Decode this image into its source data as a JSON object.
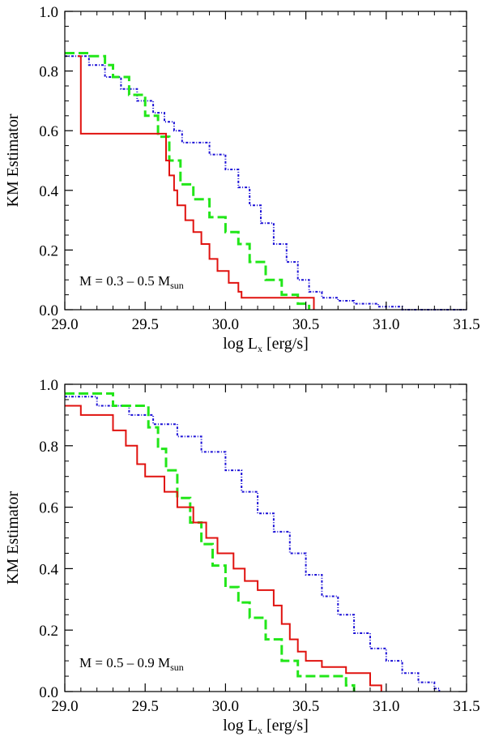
{
  "chart_data": [
    {
      "type": "line",
      "panel": "top",
      "xlabel": {
        "main": "log L",
        "sub": "x",
        "unit": " [erg/s]"
      },
      "ylabel": "KM Estimator",
      "xlim": [
        29.0,
        31.5
      ],
      "ylim": [
        0.0,
        1.0
      ],
      "xticks": [
        "29.0",
        "29.5",
        "30.0",
        "30.5",
        "31.0",
        "31.5"
      ],
      "yticks": [
        "0.0",
        "0.2",
        "0.4",
        "0.6",
        "0.8",
        "1.0"
      ],
      "annotation": {
        "prefix": "M = 0.3 – 0.5 M",
        "sub": "sun"
      },
      "series": [
        {
          "name": "blue dotted",
          "color": "#1a0fd6",
          "style": "dash-dot",
          "x": [
            29.0,
            29.15,
            29.25,
            29.35,
            29.45,
            29.55,
            29.62,
            29.68,
            29.73,
            29.9,
            30.0,
            30.08,
            30.15,
            30.22,
            30.3,
            30.38,
            30.45,
            30.52,
            30.6,
            30.7,
            30.8,
            30.95,
            31.1,
            31.3,
            31.5
          ],
          "y": [
            0.85,
            0.82,
            0.78,
            0.74,
            0.7,
            0.66,
            0.63,
            0.6,
            0.56,
            0.52,
            0.47,
            0.41,
            0.35,
            0.29,
            0.22,
            0.16,
            0.1,
            0.06,
            0.04,
            0.03,
            0.02,
            0.01,
            0.0,
            0.0,
            0.0
          ]
        },
        {
          "name": "green dashed",
          "color": "#22e619",
          "style": "dashed",
          "x": [
            29.0,
            29.15,
            29.25,
            29.3,
            29.4,
            29.5,
            29.58,
            29.65,
            29.72,
            29.8,
            29.9,
            30.0,
            30.08,
            30.15,
            30.25,
            30.35,
            30.45,
            30.52
          ],
          "y": [
            0.86,
            0.85,
            0.82,
            0.78,
            0.72,
            0.65,
            0.58,
            0.5,
            0.42,
            0.37,
            0.31,
            0.26,
            0.22,
            0.16,
            0.1,
            0.05,
            0.02,
            0.0
          ]
        },
        {
          "name": "red solid",
          "color": "#e0120f",
          "style": "solid",
          "x": [
            29.08,
            29.1,
            29.3,
            29.55,
            29.63,
            29.65,
            29.68,
            29.7,
            29.75,
            29.8,
            29.85,
            29.9,
            29.95,
            30.02,
            30.08,
            30.1,
            30.3,
            30.5,
            30.55
          ],
          "y": [
            0.85,
            0.59,
            0.59,
            0.59,
            0.5,
            0.45,
            0.4,
            0.35,
            0.3,
            0.26,
            0.22,
            0.17,
            0.13,
            0.09,
            0.06,
            0.04,
            0.04,
            0.04,
            0.0
          ]
        }
      ]
    },
    {
      "type": "line",
      "panel": "bottom",
      "xlabel": {
        "main": "log L",
        "sub": "x",
        "unit": " [erg/s]"
      },
      "ylabel": "KM Estimator",
      "xlim": [
        29.0,
        31.5
      ],
      "ylim": [
        0.0,
        1.0
      ],
      "xticks": [
        "29.0",
        "29.5",
        "30.0",
        "30.5",
        "31.0",
        "31.5"
      ],
      "yticks": [
        "0.0",
        "0.2",
        "0.4",
        "0.6",
        "0.8",
        "1.0"
      ],
      "annotation": {
        "prefix": "M = 0.5 – 0.9 M",
        "sub": "sun"
      },
      "series": [
        {
          "name": "blue dotted",
          "color": "#1a0fd6",
          "style": "dash-dot",
          "x": [
            29.0,
            29.2,
            29.4,
            29.55,
            29.7,
            29.85,
            30.0,
            30.1,
            30.2,
            30.3,
            30.4,
            30.5,
            30.6,
            30.7,
            30.8,
            30.9,
            31.0,
            31.1,
            31.2,
            31.3,
            31.33
          ],
          "y": [
            0.96,
            0.93,
            0.9,
            0.87,
            0.83,
            0.78,
            0.72,
            0.65,
            0.58,
            0.52,
            0.45,
            0.38,
            0.31,
            0.25,
            0.19,
            0.14,
            0.1,
            0.06,
            0.03,
            0.01,
            0.0
          ]
        },
        {
          "name": "green dashed",
          "color": "#22e619",
          "style": "dashed",
          "x": [
            29.0,
            29.1,
            29.3,
            29.48,
            29.52,
            29.58,
            29.63,
            29.7,
            29.78,
            29.85,
            29.92,
            30.0,
            30.08,
            30.15,
            30.25,
            30.35,
            30.45,
            30.52,
            30.65,
            30.75,
            30.8
          ],
          "y": [
            0.97,
            0.97,
            0.93,
            0.93,
            0.86,
            0.79,
            0.72,
            0.63,
            0.55,
            0.48,
            0.41,
            0.34,
            0.29,
            0.24,
            0.17,
            0.1,
            0.05,
            0.05,
            0.05,
            0.02,
            0.0
          ]
        },
        {
          "name": "red solid",
          "color": "#e0120f",
          "style": "solid",
          "x": [
            29.0,
            29.1,
            29.3,
            29.38,
            29.45,
            29.5,
            29.62,
            29.7,
            29.8,
            29.88,
            29.95,
            30.05,
            30.12,
            30.2,
            30.3,
            30.35,
            30.4,
            30.45,
            30.5,
            30.6,
            30.75,
            30.9,
            30.97
          ],
          "y": [
            0.93,
            0.9,
            0.85,
            0.8,
            0.74,
            0.7,
            0.65,
            0.6,
            0.55,
            0.5,
            0.45,
            0.4,
            0.36,
            0.33,
            0.28,
            0.22,
            0.17,
            0.13,
            0.1,
            0.08,
            0.06,
            0.02,
            0.0
          ]
        }
      ]
    }
  ]
}
